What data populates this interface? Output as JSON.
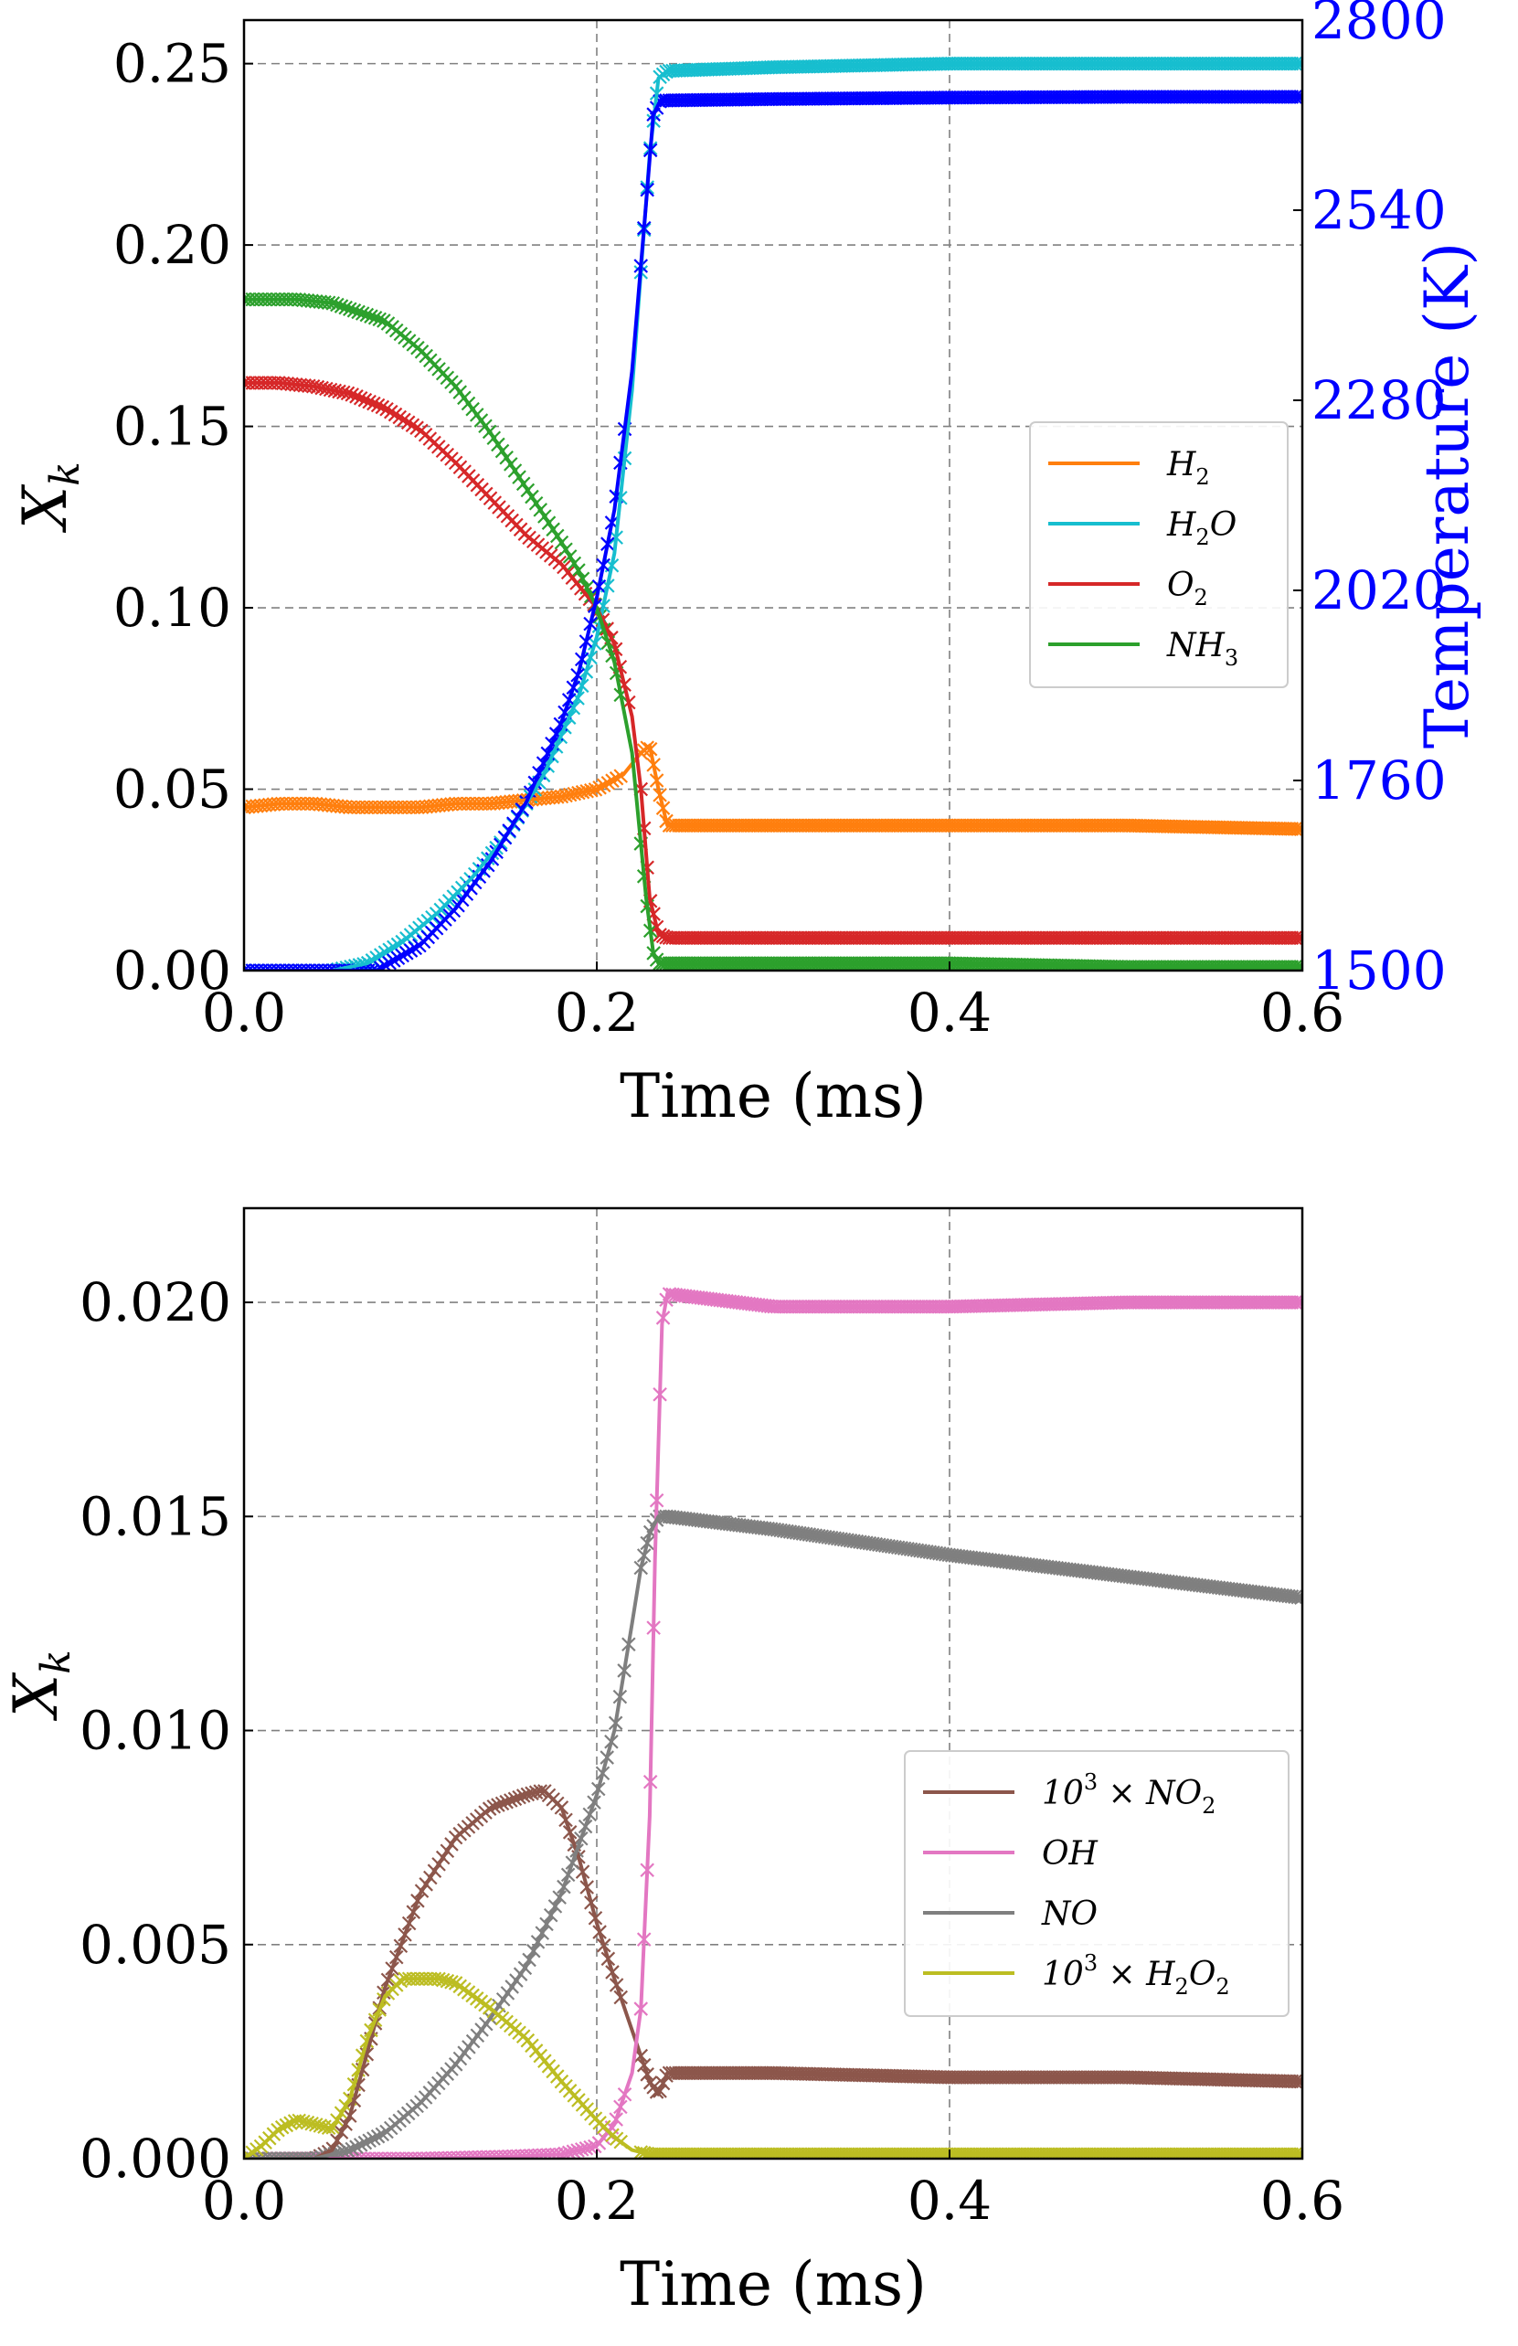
{
  "chart_data": [
    {
      "type": "line",
      "panel": "top",
      "xlabel": "Time (ms)",
      "ylabel": "X",
      "ylabel_sub": "k",
      "xlim": [
        0.0,
        0.6
      ],
      "ylim": [
        0.0,
        0.262
      ],
      "xticks": [
        "0.0",
        "0.2",
        "0.4",
        "0.6"
      ],
      "yticks": [
        "0.00",
        "0.05",
        "0.10",
        "0.15",
        "0.20",
        "0.25"
      ],
      "grid": true,
      "legend_position": "center-right",
      "y2": {
        "label": "Temperature (K)",
        "lim": [
          1500,
          2800
        ],
        "ticks": [
          "1500",
          "1760",
          "2020",
          "2280",
          "2540",
          "2800"
        ],
        "color": "#0000ff"
      },
      "series": [
        {
          "name": "H2",
          "label": "H",
          "sub": "2",
          "suffix": "",
          "color": "#ff7f0e",
          "x": [
            0,
            0.02,
            0.04,
            0.06,
            0.08,
            0.1,
            0.12,
            0.14,
            0.16,
            0.18,
            0.2,
            0.215,
            0.225,
            0.23,
            0.235,
            0.24,
            0.3,
            0.4,
            0.5,
            0.6
          ],
          "y": [
            0.045,
            0.046,
            0.046,
            0.045,
            0.045,
            0.045,
            0.046,
            0.046,
            0.047,
            0.048,
            0.05,
            0.054,
            0.06,
            0.062,
            0.05,
            0.04,
            0.04,
            0.04,
            0.04,
            0.039
          ]
        },
        {
          "name": "H2O",
          "label": "H",
          "sub": "2",
          "suffix": "O",
          "color": "#17becf",
          "x": [
            0,
            0.05,
            0.07,
            0.09,
            0.11,
            0.13,
            0.15,
            0.17,
            0.19,
            0.2,
            0.21,
            0.22,
            0.23,
            0.235,
            0.24,
            0.3,
            0.4,
            0.5,
            0.6
          ],
          "y": [
            0,
            0,
            0.002,
            0.008,
            0.016,
            0.026,
            0.038,
            0.054,
            0.076,
            0.092,
            0.115,
            0.16,
            0.225,
            0.246,
            0.248,
            0.249,
            0.25,
            0.25,
            0.25
          ]
        },
        {
          "name": "O2",
          "label": "O",
          "sub": "2",
          "suffix": "",
          "color": "#d62728",
          "x": [
            0,
            0.02,
            0.04,
            0.06,
            0.08,
            0.1,
            0.12,
            0.14,
            0.16,
            0.18,
            0.2,
            0.21,
            0.22,
            0.225,
            0.23,
            0.235,
            0.24,
            0.3,
            0.4,
            0.5,
            0.6
          ],
          "y": [
            0.162,
            0.162,
            0.161,
            0.159,
            0.155,
            0.149,
            0.14,
            0.13,
            0.12,
            0.112,
            0.1,
            0.09,
            0.07,
            0.05,
            0.02,
            0.01,
            0.009,
            0.009,
            0.009,
            0.009,
            0.009
          ]
        },
        {
          "name": "NH3",
          "label": "NH",
          "sub": "3",
          "suffix": "",
          "color": "#2ca02c",
          "x": [
            0,
            0.03,
            0.05,
            0.08,
            0.1,
            0.12,
            0.14,
            0.16,
            0.18,
            0.19,
            0.2,
            0.21,
            0.22,
            0.228,
            0.232,
            0.235,
            0.3,
            0.4,
            0.5,
            0.6
          ],
          "y": [
            0.185,
            0.185,
            0.184,
            0.179,
            0.171,
            0.161,
            0.148,
            0.133,
            0.118,
            0.11,
            0.1,
            0.085,
            0.06,
            0.02,
            0.005,
            0.002,
            0.002,
            0.002,
            0.001,
            0.001
          ]
        },
        {
          "name": "Temperature",
          "axis": "y2",
          "in_legend": false,
          "color": "#0000ff",
          "x": [
            0,
            0.075,
            0.1,
            0.12,
            0.14,
            0.16,
            0.18,
            0.19,
            0.2,
            0.21,
            0.22,
            0.228,
            0.232,
            0.236,
            0.3,
            0.4,
            0.5,
            0.6
          ],
          "y": [
            1500,
            1500,
            1535,
            1585,
            1650,
            1730,
            1840,
            1910,
            2010,
            2130,
            2320,
            2550,
            2670,
            2690,
            2692,
            2694,
            2695,
            2695
          ]
        }
      ]
    },
    {
      "type": "line",
      "panel": "bottom",
      "xlabel": "Time (ms)",
      "ylabel": "X",
      "ylabel_sub": "k",
      "xlim": [
        0.0,
        0.6
      ],
      "ylim": [
        0.0,
        0.0222
      ],
      "xticks": [
        "0.0",
        "0.2",
        "0.4",
        "0.6"
      ],
      "yticks": [
        "0.000",
        "0.005",
        "0.010",
        "0.015",
        "0.020"
      ],
      "grid": true,
      "legend_position": "lower-right",
      "series": [
        {
          "name": "10^3 x NO2",
          "label": "10",
          "sup": "3",
          "mid": " × NO",
          "sub": "2",
          "suffix": "",
          "color": "#8c564b",
          "x": [
            0,
            0.02,
            0.04,
            0.05,
            0.06,
            0.07,
            0.08,
            0.1,
            0.12,
            0.14,
            0.16,
            0.17,
            0.18,
            0.19,
            0.2,
            0.21,
            0.22,
            0.23,
            0.235,
            0.24,
            0.3,
            0.4,
            0.5,
            0.6
          ],
          "y": [
            0,
            0,
            0,
            0.0002,
            0.001,
            0.0025,
            0.004,
            0.0062,
            0.0075,
            0.0082,
            0.0085,
            0.0086,
            0.0082,
            0.007,
            0.0055,
            0.0042,
            0.003,
            0.0018,
            0.0015,
            0.002,
            0.002,
            0.0019,
            0.0019,
            0.0018
          ]
        },
        {
          "name": "OH",
          "label": "OH",
          "sub": "",
          "suffix": "",
          "color": "#e377c2",
          "x": [
            0,
            0.1,
            0.15,
            0.18,
            0.2,
            0.21,
            0.22,
            0.225,
            0.23,
            0.233,
            0.237,
            0.24,
            0.3,
            0.4,
            0.5,
            0.6
          ],
          "y": [
            0,
            0,
            5e-05,
            0.0001,
            0.0003,
            0.0008,
            0.002,
            0.0035,
            0.008,
            0.014,
            0.0195,
            0.0202,
            0.0199,
            0.0199,
            0.02,
            0.02
          ]
        },
        {
          "name": "NO",
          "label": "NO",
          "sub": "",
          "suffix": "",
          "color": "#7f7f7f",
          "x": [
            0,
            0.04,
            0.06,
            0.08,
            0.1,
            0.12,
            0.14,
            0.16,
            0.18,
            0.2,
            0.21,
            0.22,
            0.225,
            0.23,
            0.235,
            0.24,
            0.3,
            0.4,
            0.5,
            0.6
          ],
          "y": [
            0,
            0,
            0.0002,
            0.0006,
            0.0013,
            0.0022,
            0.0033,
            0.0045,
            0.0062,
            0.0085,
            0.01,
            0.0125,
            0.0138,
            0.0146,
            0.015,
            0.015,
            0.0147,
            0.0141,
            0.0136,
            0.0131
          ]
        },
        {
          "name": "10^3 x H2O2",
          "label": "10",
          "sup": "3",
          "mid": " × H",
          "sub": "2",
          "suffix": "O",
          "sub2": "2",
          "color": "#bcbd22",
          "x": [
            0,
            0.01,
            0.02,
            0.03,
            0.04,
            0.05,
            0.06,
            0.07,
            0.08,
            0.09,
            0.1,
            0.11,
            0.12,
            0.14,
            0.16,
            0.18,
            0.2,
            0.21,
            0.22,
            0.23,
            0.3,
            0.4,
            0.5,
            0.6
          ],
          "y": [
            0,
            0.0003,
            0.0007,
            0.0009,
            0.0008,
            0.0007,
            0.0014,
            0.0028,
            0.0038,
            0.0042,
            0.0042,
            0.0042,
            0.0041,
            0.0035,
            0.0028,
            0.0018,
            0.0009,
            0.0005,
            0.0002,
            0.0001,
            0.0001,
            0.0001,
            0.0001,
            0.0001
          ]
        }
      ]
    }
  ]
}
